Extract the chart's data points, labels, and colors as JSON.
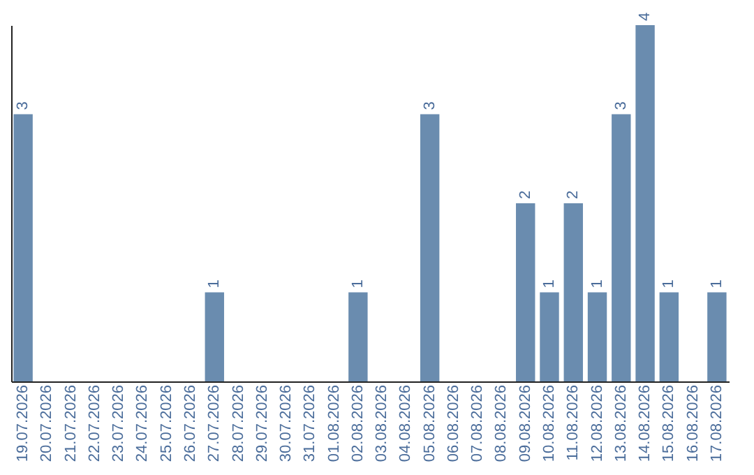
{
  "chart_data": {
    "type": "bar",
    "categories": [
      "19.07.2026",
      "20.07.2026",
      "21.07.2026",
      "22.07.2026",
      "23.07.2026",
      "24.07.2026",
      "25.07.2026",
      "26.07.2026",
      "27.07.2026",
      "28.07.2026",
      "29.07.2026",
      "30.07.2026",
      "31.07.2026",
      "01.08.2026",
      "02.08.2026",
      "03.08.2026",
      "04.08.2026",
      "05.08.2026",
      "06.08.2026",
      "07.08.2026",
      "08.08.2026",
      "09.08.2026",
      "10.08.2026",
      "11.08.2026",
      "12.08.2026",
      "13.08.2026",
      "14.08.2026",
      "15.08.2026",
      "16.08.2026",
      "17.08.2026"
    ],
    "values": [
      3,
      0,
      0,
      0,
      0,
      0,
      0,
      0,
      1,
      0,
      0,
      0,
      0,
      0,
      1,
      0,
      0,
      3,
      0,
      0,
      0,
      2,
      1,
      2,
      1,
      3,
      4,
      1,
      0,
      1
    ],
    "value_labels": [
      "3",
      null,
      null,
      null,
      null,
      null,
      null,
      null,
      "1",
      null,
      null,
      null,
      null,
      null,
      "1",
      null,
      null,
      "3",
      null,
      null,
      null,
      "2",
      "1",
      "2",
      "1",
      "3",
      "4",
      "1",
      null,
      "1"
    ],
    "color": "#6a8caf",
    "tick_labels": "x"
  }
}
